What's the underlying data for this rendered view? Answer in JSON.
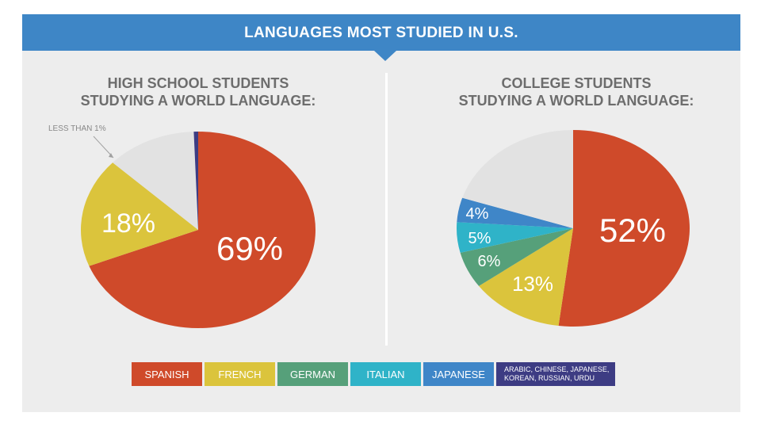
{
  "header": {
    "title": "LANGUAGES MOST STUDIED IN U.S."
  },
  "colors": {
    "spanish": "#cf4a2a",
    "french": "#dbc43c",
    "german": "#56a07a",
    "italian": "#2fb3c8",
    "japanese": "#3f86c8",
    "other": "#3d3c83",
    "remainder": "#e2e2e2",
    "banner": "#3e86c6"
  },
  "chart_data": [
    {
      "type": "pie",
      "title_lines": [
        "HIGH SCHOOL STUDENTS",
        "STUDYING A WORLD LANGUAGE:"
      ],
      "slices": [
        {
          "key": "spanish",
          "value": 69,
          "label": "69%"
        },
        {
          "key": "french",
          "value": 18,
          "label": "18%"
        },
        {
          "key": "remainder",
          "value": 12.4,
          "label": ""
        },
        {
          "key": "other",
          "value": 0.6,
          "label": ""
        }
      ],
      "annotation": "LESS THAN 1%"
    },
    {
      "type": "pie",
      "title_lines": [
        "COLLEGE STUDENTS",
        "STUDYING A WORLD LANGUAGE:"
      ],
      "slices": [
        {
          "key": "spanish",
          "value": 52,
          "label": "52%"
        },
        {
          "key": "french",
          "value": 13,
          "label": "13%"
        },
        {
          "key": "german",
          "value": 6,
          "label": "6%"
        },
        {
          "key": "italian",
          "value": 5,
          "label": "5%"
        },
        {
          "key": "japanese",
          "value": 4,
          "label": "4%"
        },
        {
          "key": "remainder",
          "value": 20,
          "label": ""
        }
      ]
    }
  ],
  "legend": [
    {
      "key": "spanish",
      "label": "SPANISH"
    },
    {
      "key": "french",
      "label": "FRENCH"
    },
    {
      "key": "german",
      "label": "GERMAN"
    },
    {
      "key": "italian",
      "label": "ITALIAN"
    },
    {
      "key": "japanese",
      "label": "JAPANESE"
    },
    {
      "key": "other",
      "label_lines": [
        "ARABIC, CHINESE, JAPANESE,",
        "KOREAN, RUSSIAN, URDU"
      ]
    }
  ]
}
